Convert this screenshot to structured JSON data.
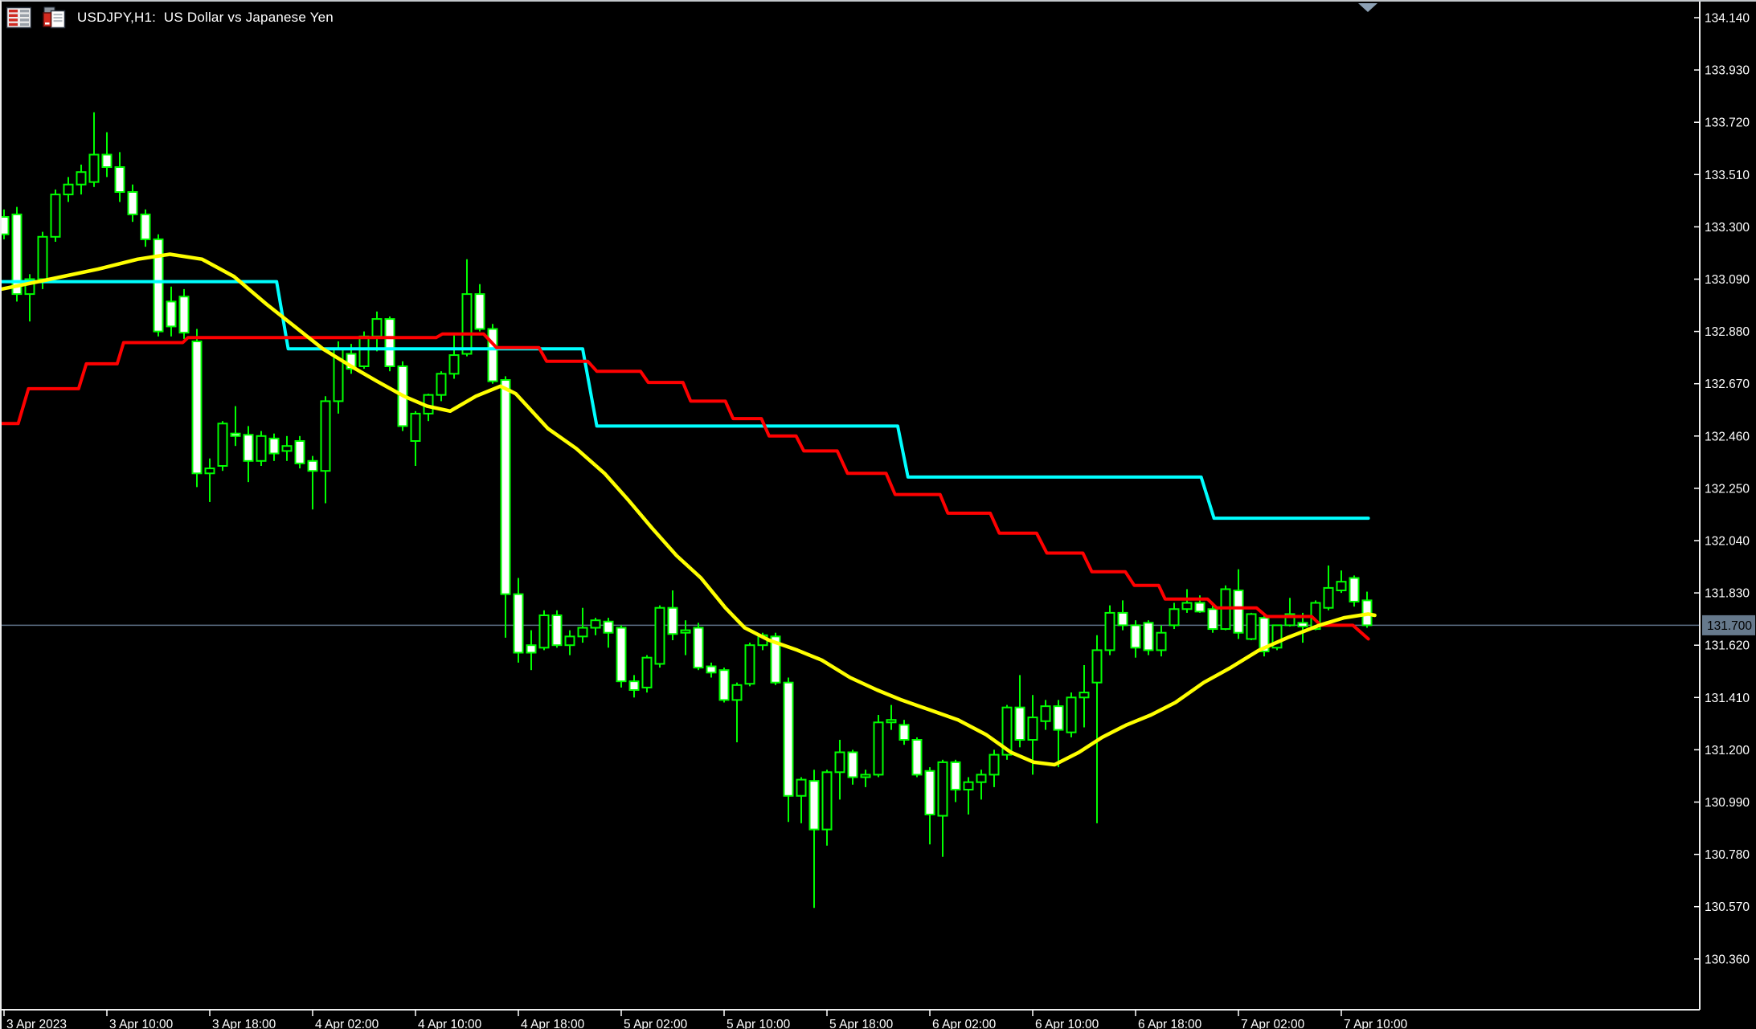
{
  "window": {
    "title": "USDJPY,H1:  US Dollar vs Japanese Yen"
  },
  "toolbar": {
    "icons": [
      {
        "name": "market-watch-icon"
      },
      {
        "name": "order-clipboard-icon"
      }
    ]
  },
  "colors": {
    "background": "#000000",
    "candle_outline": "#00ff00",
    "bull_fill": "#000000",
    "bear_fill": "#ffffff",
    "ma_yellow": "#ffff00",
    "stop_line_red": "#ff0000",
    "stop_line_cyan": "#00ffff",
    "current_price_line": "#5e7186",
    "price_badge_bg": "#66798c",
    "price_badge_text": "#000000",
    "axis_text": "#ffffff",
    "axis_line": "#ececec",
    "shift_marker": "#8da1b5"
  },
  "price_axis": {
    "labels": [
      "134.140",
      "133.930",
      "133.720",
      "133.510",
      "133.300",
      "133.090",
      "132.880",
      "132.670",
      "132.460",
      "132.250",
      "132.040",
      "131.830",
      "131.620",
      "131.410",
      "131.200",
      "130.990",
      "130.780",
      "130.570",
      "130.360"
    ],
    "current_price": "131.700"
  },
  "time_axis": {
    "labels": [
      [
        2,
        "3 Apr 2023"
      ],
      [
        10,
        "3 Apr 10:00"
      ],
      [
        18,
        "3 Apr 18:00"
      ],
      [
        26,
        "4 Apr 02:00"
      ],
      [
        34,
        "4 Apr 10:00"
      ],
      [
        42,
        "4 Apr 18:00"
      ],
      [
        50,
        "5 Apr 02:00"
      ],
      [
        58,
        "5 Apr 10:00"
      ],
      [
        66,
        "5 Apr 18:00"
      ],
      [
        74,
        "6 Apr 02:00"
      ],
      [
        82,
        "6 Apr 10:00"
      ],
      [
        90,
        "6 Apr 18:00"
      ],
      [
        98,
        "7 Apr 02:00"
      ],
      [
        106,
        "7 Apr 10:00"
      ]
    ]
  },
  "chart_data": {
    "type": "candlestick",
    "symbol": "USDJPY",
    "timeframe": "H1",
    "title": "USDJPY,H1:  US Dollar vs Japanese Yen",
    "ylim": [
      130.255,
      134.205
    ],
    "x_unit": "hours since 3 Apr 2023 00:00",
    "current_price": 131.7,
    "ohlc_format": [
      "hour_index",
      "open",
      "high",
      "low",
      "close"
    ],
    "candles": [
      [
        2,
        133.34,
        133.37,
        133.25,
        133.27
      ],
      [
        3,
        133.35,
        133.38,
        133.0,
        133.03
      ],
      [
        4,
        133.03,
        133.11,
        132.92,
        133.09
      ],
      [
        5,
        133.09,
        133.28,
        133.05,
        133.26
      ],
      [
        6,
        133.26,
        133.45,
        133.24,
        133.43
      ],
      [
        7,
        133.43,
        133.5,
        133.4,
        133.47
      ],
      [
        8,
        133.47,
        133.55,
        133.43,
        133.52
      ],
      [
        9,
        133.48,
        133.76,
        133.46,
        133.59
      ],
      [
        10,
        133.59,
        133.68,
        133.5,
        133.54
      ],
      [
        11,
        133.54,
        133.6,
        133.4,
        133.44
      ],
      [
        12,
        133.44,
        133.47,
        133.32,
        133.35
      ],
      [
        13,
        133.35,
        133.37,
        133.22,
        133.25
      ],
      [
        14,
        133.25,
        133.27,
        132.86,
        132.88
      ],
      [
        15,
        133.0,
        133.06,
        132.86,
        132.9
      ],
      [
        16,
        133.02,
        133.05,
        132.85,
        132.875
      ],
      [
        17,
        132.84,
        132.89,
        132.255,
        132.31
      ],
      [
        18,
        132.31,
        132.37,
        132.195,
        132.33
      ],
      [
        19,
        132.34,
        132.52,
        132.32,
        132.51
      ],
      [
        20,
        132.47,
        132.58,
        132.42,
        132.46
      ],
      [
        21,
        132.465,
        132.5,
        132.275,
        132.36
      ],
      [
        22,
        132.36,
        132.48,
        132.34,
        132.46
      ],
      [
        23,
        132.45,
        132.47,
        132.36,
        132.39
      ],
      [
        24,
        132.4,
        132.46,
        132.36,
        132.42
      ],
      [
        25,
        132.44,
        132.46,
        132.33,
        132.35
      ],
      [
        26,
        132.36,
        132.38,
        132.165,
        132.32
      ],
      [
        27,
        132.32,
        132.62,
        132.19,
        132.6
      ],
      [
        28,
        132.6,
        132.84,
        132.55,
        132.81
      ],
      [
        29,
        132.79,
        132.83,
        132.71,
        132.73
      ],
      [
        30,
        132.74,
        132.88,
        132.73,
        132.86
      ],
      [
        31,
        132.86,
        132.96,
        132.8,
        132.93
      ],
      [
        32,
        132.93,
        132.94,
        132.72,
        132.74
      ],
      [
        33,
        132.74,
        132.76,
        132.48,
        132.5
      ],
      [
        34,
        132.44,
        132.56,
        132.34,
        132.55
      ],
      [
        35,
        132.55,
        132.63,
        132.52,
        132.625
      ],
      [
        36,
        132.625,
        132.72,
        132.6,
        132.71
      ],
      [
        37,
        132.71,
        132.87,
        132.69,
        132.785
      ],
      [
        38,
        132.79,
        133.17,
        132.78,
        133.03
      ],
      [
        39,
        133.03,
        133.07,
        132.88,
        132.89
      ],
      [
        40,
        132.89,
        132.91,
        132.67,
        132.68
      ],
      [
        41,
        132.685,
        132.7,
        131.65,
        131.825
      ],
      [
        42,
        131.825,
        131.89,
        131.55,
        131.59
      ],
      [
        43,
        131.62,
        131.68,
        131.52,
        131.59
      ],
      [
        44,
        131.61,
        131.76,
        131.6,
        131.74
      ],
      [
        45,
        131.74,
        131.76,
        131.61,
        131.62
      ],
      [
        46,
        131.62,
        131.68,
        131.58,
        131.655
      ],
      [
        47,
        131.655,
        131.77,
        131.63,
        131.69
      ],
      [
        48,
        131.69,
        131.73,
        131.66,
        131.72
      ],
      [
        49,
        131.715,
        131.73,
        131.61,
        131.67
      ],
      [
        50,
        131.69,
        131.7,
        131.45,
        131.475
      ],
      [
        51,
        131.475,
        131.5,
        131.41,
        131.44
      ],
      [
        52,
        131.45,
        131.58,
        131.43,
        131.57
      ],
      [
        53,
        131.545,
        131.78,
        131.53,
        131.77
      ],
      [
        54,
        131.77,
        131.84,
        131.64,
        131.665
      ],
      [
        55,
        131.67,
        131.72,
        131.58,
        131.68
      ],
      [
        56,
        131.69,
        131.71,
        131.52,
        131.53
      ],
      [
        57,
        131.535,
        131.55,
        131.49,
        131.51
      ],
      [
        58,
        131.52,
        131.53,
        131.39,
        131.4
      ],
      [
        59,
        131.4,
        131.47,
        131.23,
        131.46
      ],
      [
        60,
        131.465,
        131.63,
        131.455,
        131.62
      ],
      [
        61,
        131.62,
        131.67,
        131.6,
        131.66
      ],
      [
        62,
        131.655,
        131.67,
        131.46,
        131.47
      ],
      [
        63,
        131.47,
        131.49,
        130.91,
        131.015
      ],
      [
        64,
        131.015,
        131.09,
        130.905,
        131.08
      ],
      [
        65,
        131.075,
        131.12,
        130.565,
        130.88
      ],
      [
        66,
        130.88,
        131.12,
        130.815,
        131.11
      ],
      [
        67,
        131.11,
        131.24,
        131.0,
        131.19
      ],
      [
        68,
        131.19,
        131.2,
        131.06,
        131.09
      ],
      [
        69,
        131.09,
        131.12,
        131.05,
        131.1
      ],
      [
        70,
        131.1,
        131.34,
        131.09,
        131.31
      ],
      [
        71,
        131.31,
        131.38,
        131.28,
        131.32
      ],
      [
        72,
        131.3,
        131.32,
        131.22,
        131.24
      ],
      [
        73,
        131.24,
        131.25,
        131.09,
        131.1
      ],
      [
        74,
        131.115,
        131.13,
        130.82,
        130.94
      ],
      [
        75,
        130.935,
        131.16,
        130.77,
        131.15
      ],
      [
        76,
        131.15,
        131.16,
        130.99,
        131.04
      ],
      [
        77,
        131.04,
        131.09,
        130.94,
        131.07
      ],
      [
        78,
        131.07,
        131.12,
        131.0,
        131.1
      ],
      [
        79,
        131.1,
        131.2,
        131.05,
        131.18
      ],
      [
        80,
        131.18,
        131.38,
        131.16,
        131.37
      ],
      [
        81,
        131.37,
        131.5,
        131.21,
        131.24
      ],
      [
        82,
        131.24,
        131.42,
        131.1,
        131.33
      ],
      [
        83,
        131.315,
        131.4,
        131.28,
        131.375
      ],
      [
        84,
        131.375,
        131.4,
        131.13,
        131.28
      ],
      [
        85,
        131.27,
        131.43,
        131.25,
        131.41
      ],
      [
        86,
        131.41,
        131.54,
        131.29,
        131.43
      ],
      [
        87,
        131.47,
        131.66,
        130.905,
        131.6
      ],
      [
        88,
        131.6,
        131.78,
        131.58,
        131.75
      ],
      [
        89,
        131.75,
        131.8,
        131.68,
        131.7
      ],
      [
        90,
        131.7,
        131.72,
        131.57,
        131.61
      ],
      [
        91,
        131.71,
        131.72,
        131.58,
        131.6
      ],
      [
        92,
        131.6,
        131.7,
        131.575,
        131.67
      ],
      [
        93,
        131.7,
        131.79,
        131.685,
        131.765
      ],
      [
        94,
        131.765,
        131.845,
        131.75,
        131.79
      ],
      [
        95,
        131.79,
        131.82,
        131.75,
        131.755
      ],
      [
        96,
        131.765,
        131.78,
        131.67,
        131.685
      ],
      [
        97,
        131.685,
        131.86,
        131.68,
        131.845
      ],
      [
        98,
        131.84,
        131.925,
        131.645,
        131.67
      ],
      [
        99,
        131.645,
        131.75,
        131.64,
        131.745
      ],
      [
        100,
        131.73,
        131.74,
        131.575,
        131.595
      ],
      [
        101,
        131.61,
        131.7,
        131.6,
        131.7
      ],
      [
        102,
        131.7,
        131.81,
        131.695,
        131.745
      ],
      [
        103,
        131.71,
        131.75,
        131.63,
        131.695
      ],
      [
        104,
        131.685,
        131.8,
        131.68,
        131.79
      ],
      [
        105,
        131.77,
        131.94,
        131.76,
        131.85
      ],
      [
        106,
        131.84,
        131.92,
        131.83,
        131.875
      ],
      [
        107,
        131.89,
        131.9,
        131.775,
        131.795
      ],
      [
        108,
        131.8,
        131.835,
        131.69,
        131.7
      ]
    ],
    "indicators": [
      {
        "name": "moving-average",
        "color": "#ffff00",
        "width": 4.5,
        "points": [
          [
            1.8,
            133.05
          ],
          [
            5.6,
            133.09
          ],
          [
            9.3,
            133.13
          ],
          [
            12.4,
            133.17
          ],
          [
            14.9,
            133.19
          ],
          [
            17.4,
            133.17
          ],
          [
            19.9,
            133.1
          ],
          [
            22.4,
            132.99
          ],
          [
            24.6,
            132.9
          ],
          [
            26.8,
            132.81
          ],
          [
            29,
            132.74
          ],
          [
            31,
            132.68
          ],
          [
            33.1,
            132.62
          ],
          [
            34.9,
            132.58
          ],
          [
            36.7,
            132.56
          ],
          [
            38.7,
            132.62
          ],
          [
            40.6,
            132.66
          ],
          [
            41.8,
            132.63
          ],
          [
            44.3,
            132.49
          ],
          [
            46.5,
            132.41
          ],
          [
            48.7,
            132.31
          ],
          [
            50.6,
            132.2
          ],
          [
            52.4,
            132.09
          ],
          [
            54.3,
            131.98
          ],
          [
            56.2,
            131.89
          ],
          [
            58.1,
            131.77
          ],
          [
            59.6,
            131.69
          ],
          [
            61.5,
            131.64
          ],
          [
            63.7,
            131.6
          ],
          [
            65.6,
            131.56
          ],
          [
            67.8,
            131.49
          ],
          [
            69.9,
            131.44
          ],
          [
            71.8,
            131.4
          ],
          [
            74,
            131.36
          ],
          [
            76.2,
            131.32
          ],
          [
            78.4,
            131.26
          ],
          [
            80.3,
            131.19
          ],
          [
            82.1,
            131.15
          ],
          [
            83.7,
            131.14
          ],
          [
            85.6,
            131.19
          ],
          [
            87.4,
            131.25
          ],
          [
            89.3,
            131.3
          ],
          [
            91.2,
            131.34
          ],
          [
            93.1,
            131.39
          ],
          [
            95.3,
            131.47
          ],
          [
            97.4,
            131.53
          ],
          [
            99.6,
            131.6
          ],
          [
            101.8,
            131.65
          ],
          [
            104.3,
            131.7
          ],
          [
            106.2,
            131.73
          ],
          [
            108.1,
            131.745
          ],
          [
            108.6,
            131.74
          ]
        ]
      },
      {
        "name": "trend-stop-red",
        "color": "#ff0000",
        "width": 4,
        "points": [
          [
            1.8,
            132.51
          ],
          [
            3.1,
            132.51
          ],
          [
            3.9,
            132.65
          ],
          [
            7.8,
            132.65
          ],
          [
            8.4,
            132.75
          ],
          [
            10.8,
            132.75
          ],
          [
            11.3,
            132.835
          ],
          [
            15.9,
            132.835
          ],
          [
            16.3,
            132.855
          ],
          [
            35.6,
            132.855
          ],
          [
            36.1,
            132.87
          ],
          [
            39.3,
            132.87
          ],
          [
            40.3,
            132.815
          ],
          [
            43.6,
            132.815
          ],
          [
            44.2,
            132.76
          ],
          [
            47.4,
            132.76
          ],
          [
            48.1,
            132.72
          ],
          [
            51.5,
            132.72
          ],
          [
            52.1,
            132.675
          ],
          [
            54.8,
            132.675
          ],
          [
            55.4,
            132.6
          ],
          [
            58.1,
            132.6
          ],
          [
            58.7,
            132.53
          ],
          [
            60.9,
            132.53
          ],
          [
            61.5,
            132.46
          ],
          [
            63.6,
            132.46
          ],
          [
            64.2,
            132.4
          ],
          [
            66.8,
            132.4
          ],
          [
            67.6,
            132.31
          ],
          [
            70.6,
            132.31
          ],
          [
            71.3,
            132.225
          ],
          [
            74.8,
            132.225
          ],
          [
            75.4,
            132.15
          ],
          [
            78.7,
            132.15
          ],
          [
            79.4,
            132.07
          ],
          [
            82.3,
            132.07
          ],
          [
            83.1,
            131.99
          ],
          [
            85.9,
            131.99
          ],
          [
            86.6,
            131.915
          ],
          [
            89.2,
            131.915
          ],
          [
            89.9,
            131.86
          ],
          [
            91.8,
            131.86
          ],
          [
            92.3,
            131.805
          ],
          [
            95.6,
            131.805
          ],
          [
            96.3,
            131.77
          ],
          [
            99.4,
            131.77
          ],
          [
            100.2,
            131.735
          ],
          [
            103.7,
            131.735
          ],
          [
            104.4,
            131.7
          ],
          [
            106.9,
            131.7
          ],
          [
            108.1,
            131.645
          ]
        ]
      },
      {
        "name": "trend-stop-cyan",
        "color": "#00ffff",
        "width": 4,
        "points": [
          [
            1.8,
            133.08
          ],
          [
            23.2,
            133.08
          ],
          [
            24.1,
            132.81
          ],
          [
            47,
            132.81
          ],
          [
            48.1,
            132.5
          ],
          [
            71.5,
            132.5
          ],
          [
            72.3,
            132.295
          ],
          [
            95.1,
            132.295
          ],
          [
            96.1,
            132.13
          ],
          [
            108.1,
            132.13
          ]
        ]
      }
    ]
  }
}
